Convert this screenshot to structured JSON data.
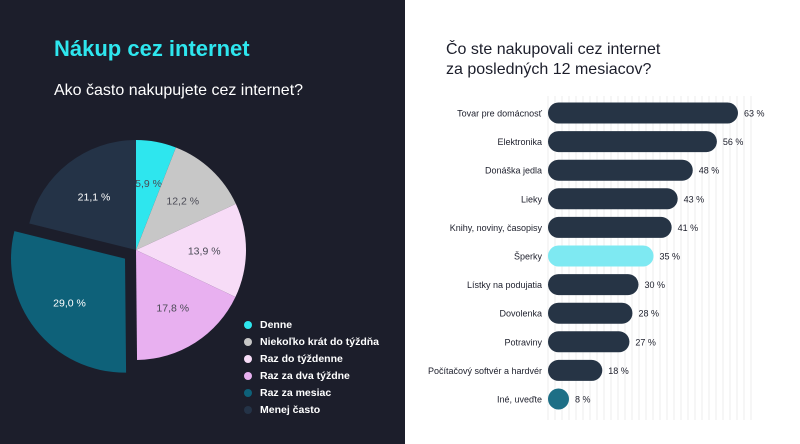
{
  "left": {
    "title": "Nákup cez internet",
    "subtitle": "Ako často nakupujete cez internet?"
  },
  "right": {
    "title_line1": "Čo ste nakupovali cez internet",
    "title_line2": "za posledných 12 mesiacov?"
  },
  "colors": {
    "dark_bg": "#1c1e2b",
    "accent_cyan": "#2ee6ee",
    "bar_dark": "#263445",
    "bar_highlight": "#7ee9f2",
    "bar_teal": "#1d6f86"
  },
  "chart_data": [
    {
      "type": "pie",
      "slices": [
        {
          "label": "Denne",
          "value": 5.9,
          "value_label": "5,9 %",
          "color": "#2ee6ee"
        },
        {
          "label": "Niekoľko krát do týždňa",
          "value": 12.2,
          "value_label": "12,2 %",
          "color": "#c7c7c7"
        },
        {
          "label": "Raz do týždenne",
          "value": 13.9,
          "value_label": "13,9 %",
          "color": "#f7dcf7"
        },
        {
          "label": "Raz za dva týždne",
          "value": 17.8,
          "value_label": "17,8 %",
          "color": "#e8b0f0"
        },
        {
          "label": "Raz za mesiac",
          "value": 29.0,
          "value_label": "29,0 %",
          "color": "#0e6179"
        },
        {
          "label": "Menej často",
          "value": 21.1,
          "value_label": "21,1 %",
          "color": "#243347"
        }
      ],
      "legend_placement": "bottom-right"
    },
    {
      "type": "bar",
      "orientation": "horizontal",
      "categories": [
        "Tovar pre domácnosť",
        "Elektronika",
        "Donáška jedla",
        "Lieky",
        "Knihy, noviny, časopisy",
        "Šperky",
        "Lístky na podujatia",
        "Dovolenka",
        "Potraviny",
        "Počítačový softvér a hardvér",
        "Iné, uveďte"
      ],
      "values": [
        63,
        56,
        48,
        43,
        41,
        35,
        30,
        28,
        27,
        18,
        8
      ],
      "value_labels": [
        "63 %",
        "56 %",
        "48 %",
        "43 %",
        "41 %",
        "35 %",
        "30 %",
        "28 %",
        "27 %",
        "18 %",
        "8 %"
      ],
      "highlight_index": 5,
      "xlim": [
        0,
        63
      ]
    }
  ]
}
